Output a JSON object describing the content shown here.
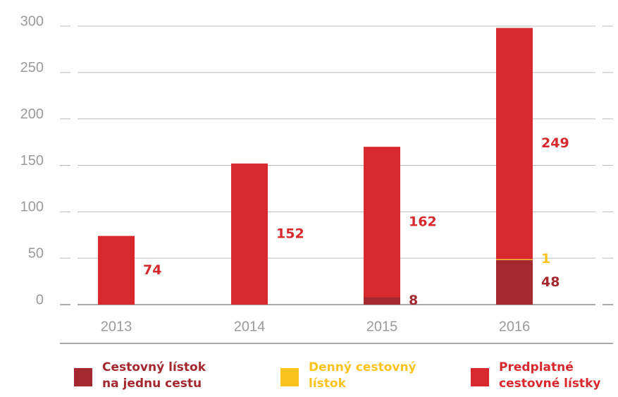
{
  "chart_data": {
    "type": "stacked_bar",
    "categories": [
      "2013",
      "2014",
      "2015",
      "2016"
    ],
    "series": [
      {
        "name": "Cestovný lístok na jednu cestu",
        "color": "#a4282f",
        "values": [
          null,
          null,
          8,
          48
        ]
      },
      {
        "name": "Denný cestovný lístok",
        "color": "#fcc31e",
        "values": [
          null,
          null,
          null,
          1
        ]
      },
      {
        "name": "Predplatné cestovné lístky",
        "color": "#d7282e",
        "values": [
          74,
          152,
          162,
          249
        ]
      }
    ],
    "ylim": [
      0,
      300
    ],
    "yticks": [
      0,
      50,
      100,
      150,
      200,
      250,
      300
    ],
    "grid": true
  }
}
